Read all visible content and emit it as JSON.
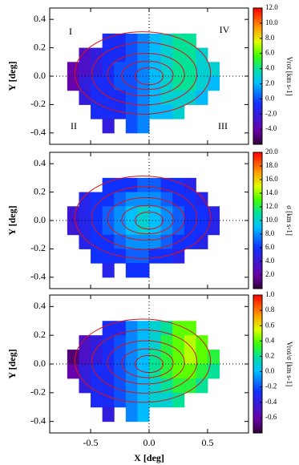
{
  "chart_data": [
    {
      "type": "heatmap",
      "ylabel": "Y [deg]",
      "quadrant_labels": [
        "I",
        "II",
        "III",
        "IV"
      ],
      "x": [
        -0.65,
        -0.55,
        -0.45,
        -0.35,
        -0.25,
        -0.15,
        -0.05,
        0.05,
        0.15,
        0.25,
        0.35,
        0.45,
        0.55
      ],
      "y": [
        0.25,
        0.15,
        0.05,
        -0.05,
        -0.15,
        -0.25,
        -0.35
      ],
      "z": [
        [
          null,
          null,
          null,
          -1,
          -1,
          0,
          1,
          2,
          3,
          4,
          4,
          null,
          null
        ],
        [
          null,
          -3,
          -2,
          -1,
          -1,
          0,
          1,
          2,
          3,
          4,
          4,
          3,
          null
        ],
        [
          -4,
          -3,
          -2,
          -1,
          0,
          0,
          1,
          2,
          3,
          4,
          4,
          3,
          3
        ],
        [
          -4,
          -2,
          -1,
          -1,
          0,
          0,
          1,
          2,
          3,
          4,
          4,
          3,
          2
        ],
        [
          null,
          -2,
          -1,
          -1,
          -1,
          0,
          1,
          2,
          3,
          3,
          3,
          2,
          null
        ],
        [
          null,
          null,
          -1,
          -1,
          -1,
          0,
          1,
          2,
          2,
          3,
          null,
          null,
          null
        ],
        [
          null,
          null,
          null,
          -2,
          null,
          0,
          1,
          null,
          null,
          null,
          null,
          null,
          null
        ]
      ],
      "xlim": [
        -0.85,
        0.85
      ],
      "ylim": [
        -0.48,
        0.48
      ],
      "xticks": [
        -0.5,
        0,
        0.5
      ],
      "yticks": [
        -0.4,
        -0.2,
        {
          "value": 0,
          "label": "0.0"
        },
        0.2,
        0.4
      ],
      "colorbar": {
        "label": "Vrot [km s-1]",
        "lim": [
          -6,
          12
        ],
        "ticks": [
          {
            "value": 12,
            "label": "12.0"
          },
          {
            "value": 10,
            "label": "10.0"
          },
          {
            "value": 8,
            "label": "8.0"
          },
          {
            "value": 6,
            "label": "6.0"
          },
          {
            "value": 4,
            "label": "4.0"
          },
          {
            "value": 2,
            "label": "2.0"
          },
          {
            "value": 0,
            "label": "0.0"
          },
          {
            "value": -2,
            "label": "-2.0"
          },
          {
            "value": -4,
            "label": "-4.0"
          }
        ]
      }
    },
    {
      "type": "heatmap",
      "ylabel": "Y [deg]",
      "x": [
        -0.65,
        -0.55,
        -0.45,
        -0.35,
        -0.25,
        -0.15,
        -0.05,
        0.05,
        0.15,
        0.25,
        0.35,
        0.45,
        0.55
      ],
      "y": [
        0.25,
        0.15,
        0.05,
        -0.05,
        -0.15,
        -0.25,
        -0.35
      ],
      "z": [
        [
          null,
          null,
          null,
          6,
          6,
          6,
          7,
          7,
          6,
          6,
          5,
          null,
          null
        ],
        [
          null,
          5,
          6,
          6,
          7,
          8,
          8,
          8,
          7,
          6,
          6,
          5,
          null
        ],
        [
          4,
          5,
          6,
          7,
          8,
          9,
          10,
          9,
          8,
          7,
          6,
          6,
          5
        ],
        [
          4,
          5,
          6,
          7,
          8,
          9,
          10,
          9,
          8,
          7,
          6,
          6,
          5
        ],
        [
          null,
          5,
          6,
          6,
          7,
          8,
          8,
          8,
          7,
          6,
          6,
          5,
          null
        ],
        [
          null,
          null,
          6,
          6,
          6,
          7,
          7,
          6,
          6,
          5,
          null,
          null,
          null
        ],
        [
          null,
          null,
          null,
          5,
          null,
          6,
          6,
          null,
          null,
          null,
          null,
          null,
          null
        ]
      ],
      "xlim": [
        -0.85,
        0.85
      ],
      "ylim": [
        -0.48,
        0.48
      ],
      "xticks": [
        -0.5,
        0,
        0.5
      ],
      "yticks": [
        -0.4,
        -0.2,
        {
          "value": 0,
          "label": "0.0"
        },
        0.2,
        0.4
      ],
      "colorbar": {
        "label": "σ [km s-1]",
        "lim": [
          0,
          20
        ],
        "ticks": [
          {
            "value": 20,
            "label": "20.0"
          },
          {
            "value": 18,
            "label": "18.0"
          },
          {
            "value": 16,
            "label": "16.0"
          },
          {
            "value": 14,
            "label": "14.0"
          },
          {
            "value": 12,
            "label": "12.0"
          },
          {
            "value": 10,
            "label": "10.0"
          },
          {
            "value": 8,
            "label": "8.0"
          },
          {
            "value": 6,
            "label": "6.0"
          },
          {
            "value": 4,
            "label": "4.0"
          },
          {
            "value": 2,
            "label": "2.0"
          }
        ]
      }
    },
    {
      "type": "heatmap",
      "ylabel": "Y [deg]",
      "xlabel": "X [deg]",
      "x": [
        -0.65,
        -0.55,
        -0.45,
        -0.35,
        -0.25,
        -0.15,
        -0.05,
        0.05,
        0.15,
        0.25,
        0.35,
        0.45,
        0.55
      ],
      "y": [
        0.25,
        0.15,
        0.05,
        -0.05,
        -0.15,
        -0.25,
        -0.35
      ],
      "z": [
        [
          null,
          null,
          null,
          -0.3,
          -0.3,
          -0.1,
          0,
          0.1,
          0.2,
          0.4,
          0.4,
          null,
          null
        ],
        [
          null,
          -0.5,
          -0.4,
          -0.3,
          -0.2,
          -0.1,
          0,
          0.1,
          0.3,
          0.4,
          0.5,
          0.4,
          null
        ],
        [
          -0.7,
          -0.5,
          -0.4,
          -0.3,
          -0.2,
          -0.1,
          0,
          0.2,
          0.3,
          0.4,
          0.5,
          0.4,
          0.3
        ],
        [
          -0.6,
          -0.4,
          -0.3,
          -0.3,
          -0.2,
          -0.1,
          0,
          0.2,
          0.3,
          0.4,
          0.4,
          0.3,
          0.2
        ],
        [
          null,
          -0.4,
          -0.3,
          -0.3,
          -0.2,
          -0.1,
          0,
          0.1,
          0.2,
          0.3,
          0.3,
          0.2,
          null
        ],
        [
          null,
          null,
          -0.3,
          -0.3,
          -0.2,
          -0.1,
          0,
          0.1,
          0.1,
          0.2,
          null,
          null,
          null
        ],
        [
          null,
          null,
          null,
          -0.4,
          null,
          -0.1,
          0,
          null,
          null,
          null,
          null,
          null,
          null
        ]
      ],
      "xlim": [
        -0.85,
        0.85
      ],
      "ylim": [
        -0.48,
        0.48
      ],
      "xticks": [
        -0.5,
        {
          "value": 0,
          "label": "0.0"
        },
        0.5
      ],
      "yticks": [
        -0.4,
        -0.2,
        {
          "value": 0,
          "label": "0.0"
        },
        0.2,
        0.4
      ],
      "colorbar": {
        "label": "Vrot/σ [km s-1]",
        "lim": [
          -0.8,
          1.0
        ],
        "ticks": [
          {
            "value": 1,
            "label": "1.0"
          },
          0.8,
          0.6,
          0.4,
          0.2,
          {
            "value": 0,
            "label": "0.0"
          },
          -0.2,
          -0.4,
          -0.6
        ]
      }
    }
  ]
}
